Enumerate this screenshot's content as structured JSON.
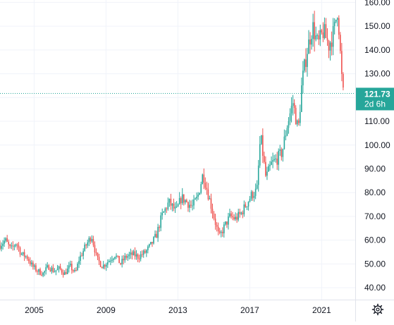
{
  "chart_data": {
    "type": "candlestick",
    "x_ticks": [
      "2005",
      "2009",
      "2013",
      "2017",
      "2021"
    ],
    "y_ticks": [
      "40.00",
      "50.00",
      "60.00",
      "70.00",
      "80.00",
      "90.00",
      "100.00",
      "110.00",
      "120.00",
      "130.00",
      "140.00",
      "150.00",
      "160.00"
    ],
    "ylim": [
      35,
      161
    ],
    "xlim": [
      2003.6,
      2022.9
    ],
    "grid": true,
    "last_price": {
      "value": 121.73,
      "label": "121.73",
      "countdown": "2d 6h"
    },
    "colors": {
      "up": "#26a69a",
      "down": "#ef5350",
      "grid": "#f0f3fa",
      "text": "#131722",
      "price_line": "#26a69a"
    },
    "series": [
      {
        "t": 2003.6,
        "p": 58
      },
      {
        "t": 2003.9,
        "p": 60
      },
      {
        "t": 2004.2,
        "p": 56
      },
      {
        "t": 2004.5,
        "p": 59
      },
      {
        "t": 2004.8,
        "p": 54
      },
      {
        "t": 2005.1,
        "p": 53
      },
      {
        "t": 2005.4,
        "p": 49
      },
      {
        "t": 2005.7,
        "p": 47
      },
      {
        "t": 2006.0,
        "p": 46
      },
      {
        "t": 2006.3,
        "p": 49
      },
      {
        "t": 2006.6,
        "p": 47
      },
      {
        "t": 2006.9,
        "p": 48
      },
      {
        "t": 2007.2,
        "p": 46
      },
      {
        "t": 2007.5,
        "p": 49
      },
      {
        "t": 2007.8,
        "p": 46
      },
      {
        "t": 2008.0,
        "p": 52
      },
      {
        "t": 2008.4,
        "p": 58
      },
      {
        "t": 2008.7,
        "p": 62
      },
      {
        "t": 2009.0,
        "p": 52
      },
      {
        "t": 2009.3,
        "p": 49
      },
      {
        "t": 2009.6,
        "p": 51
      },
      {
        "t": 2010.0,
        "p": 54
      },
      {
        "t": 2010.3,
        "p": 50
      },
      {
        "t": 2010.6,
        "p": 53
      },
      {
        "t": 2011.0,
        "p": 54
      },
      {
        "t": 2011.3,
        "p": 53
      },
      {
        "t": 2011.7,
        "p": 55
      },
      {
        "t": 2012.0,
        "p": 58
      },
      {
        "t": 2012.3,
        "p": 62
      },
      {
        "t": 2012.6,
        "p": 70
      },
      {
        "t": 2013.0,
        "p": 76
      },
      {
        "t": 2013.4,
        "p": 72
      },
      {
        "t": 2013.7,
        "p": 78
      },
      {
        "t": 2014.0,
        "p": 76
      },
      {
        "t": 2014.3,
        "p": 74
      },
      {
        "t": 2014.6,
        "p": 78
      },
      {
        "t": 2014.9,
        "p": 88
      },
      {
        "t": 2015.2,
        "p": 79
      },
      {
        "t": 2015.5,
        "p": 70
      },
      {
        "t": 2015.8,
        "p": 61
      },
      {
        "t": 2016.1,
        "p": 66
      },
      {
        "t": 2016.4,
        "p": 70
      },
      {
        "t": 2016.7,
        "p": 69
      },
      {
        "t": 2017.0,
        "p": 71
      },
      {
        "t": 2017.3,
        "p": 75
      },
      {
        "t": 2017.6,
        "p": 79
      },
      {
        "t": 2017.9,
        "p": 81
      },
      {
        "t": 2018.1,
        "p": 104
      },
      {
        "t": 2018.4,
        "p": 86
      },
      {
        "t": 2018.7,
        "p": 92
      },
      {
        "t": 2019.0,
        "p": 94
      },
      {
        "t": 2019.3,
        "p": 97
      },
      {
        "t": 2019.6,
        "p": 109
      },
      {
        "t": 2019.9,
        "p": 118
      },
      {
        "t": 2020.2,
        "p": 106
      },
      {
        "t": 2020.4,
        "p": 126
      },
      {
        "t": 2020.7,
        "p": 140
      },
      {
        "t": 2021.0,
        "p": 150
      },
      {
        "t": 2021.3,
        "p": 142
      },
      {
        "t": 2021.6,
        "p": 148
      },
      {
        "t": 2021.9,
        "p": 142
      },
      {
        "t": 2022.2,
        "p": 148
      },
      {
        "t": 2022.4,
        "p": 158
      },
      {
        "t": 2022.6,
        "p": 130
      },
      {
        "t": 2022.7,
        "p": 121.73
      }
    ]
  },
  "toolbar": {
    "settings_icon": "gear-icon"
  }
}
